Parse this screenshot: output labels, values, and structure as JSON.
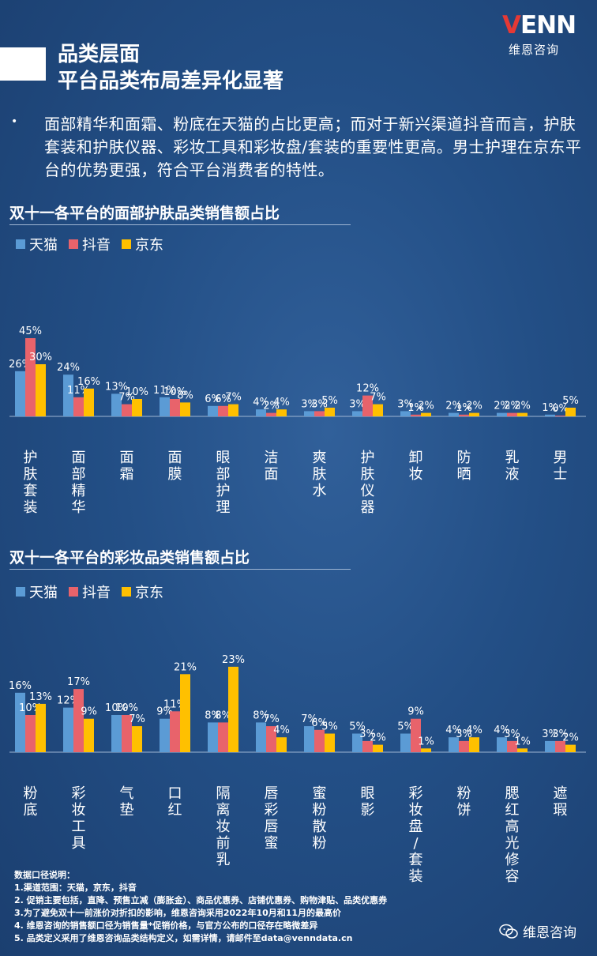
{
  "header": {
    "title": "品类层面\n平台品类布局差异化显著",
    "logo_text": "VENN",
    "logo_subtitle": "维恩咨询"
  },
  "summary": "面部精华和面霜、粉底在天猫的占比更高；而对于新兴渠道抖音而言，护肤套装和护肤仪器、彩妆工具和彩妆盘/套装的重要性更高。男士护理在京东平台的优势更强，符合平台消费者的特性。",
  "colors": {
    "tmall": "#5b9bd5",
    "douyin": "#e8636b",
    "jd": "#ffc000"
  },
  "chart_data": [
    {
      "type": "bar",
      "title": "双十一各平台的面部护肤品类销售额占比",
      "categories": [
        "护肤套装",
        "面部精华",
        "面霜",
        "面膜",
        "眼部护理",
        "洁面",
        "爽肤水",
        "护肤仪器",
        "卸妆",
        "防晒",
        "乳液",
        "男士"
      ],
      "series": [
        {
          "name": "天猫",
          "values": [
            26,
            24,
            13,
            11,
            6,
            4,
            3,
            3,
            3,
            2,
            2,
            1
          ]
        },
        {
          "name": "抖音",
          "values": [
            45,
            11,
            7,
            10,
            6,
            2,
            3,
            12,
            1,
            1,
            2,
            0
          ]
        },
        {
          "name": "京东",
          "values": [
            30,
            16,
            10,
            8,
            7,
            4,
            5,
            7,
            2,
            2,
            2,
            5
          ]
        }
      ],
      "unit": "%"
    },
    {
      "type": "bar",
      "title": "双十一各平台的彩妆品类销售额占比",
      "categories": [
        "粉底",
        "彩妆工具",
        "气垫",
        "口红",
        "隔离妆前乳",
        "唇彩唇蜜",
        "蜜粉散粉",
        "眼影",
        "彩妆盘/套装",
        "粉饼",
        "腮红高光修容",
        "遮瑕"
      ],
      "series": [
        {
          "name": "天猫",
          "values": [
            16,
            12,
            10,
            9,
            8,
            8,
            7,
            5,
            5,
            4,
            4,
            3
          ]
        },
        {
          "name": "抖音",
          "values": [
            10,
            17,
            10,
            11,
            8,
            7,
            6,
            3,
            9,
            3,
            3,
            3
          ]
        },
        {
          "name": "京东",
          "values": [
            13,
            9,
            7,
            21,
            23,
            4,
            5,
            2,
            1,
            4,
            1,
            2
          ]
        }
      ],
      "unit": "%"
    }
  ],
  "notes": [
    "数据口径说明：",
    "1.渠道范围：天猫，京东，抖音",
    "2. 促销主要包括，直降、预售立减（膨胀金）、商品优惠券、店铺优惠券、购物津贴、品类优惠券",
    "3.为了避免双十一前涨价对折扣的影响，维恩咨询采用2022年10月和11月的最高价",
    "4. 维恩咨询的销售额口径为销售量*促销价格，与官方公布的口径存在略微差异",
    "5. 品类定义采用了维恩咨询品类结构定义，如需详情，请邮件至data@venndata.cn"
  ],
  "footer": {
    "brand": "维恩咨询"
  }
}
